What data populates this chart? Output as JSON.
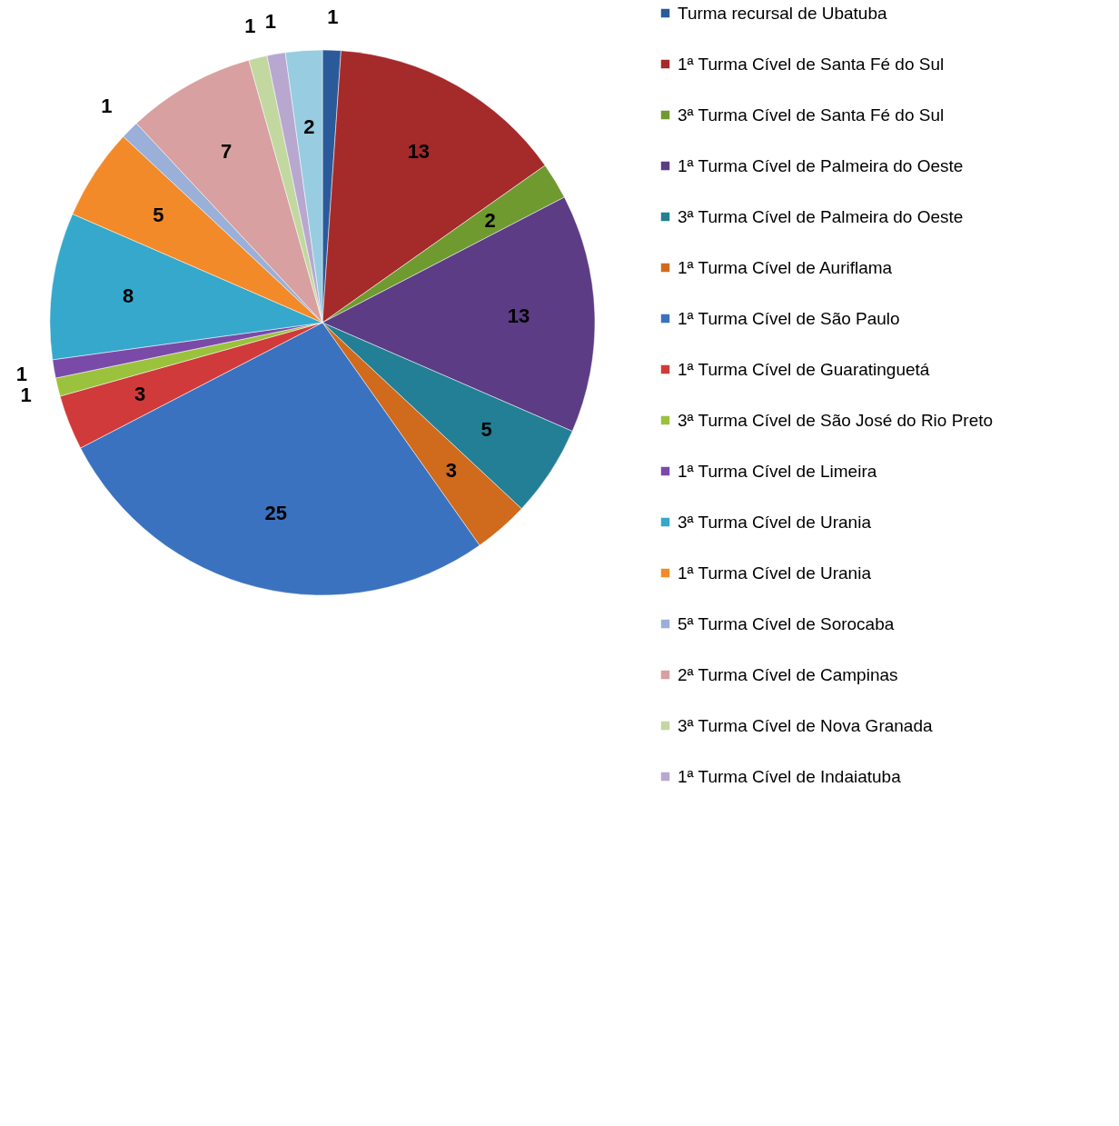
{
  "chart_data": {
    "type": "pie",
    "categories": [
      "Turma recursal de Ubatuba",
      "1ª Turma Cível de Santa Fé do Sul",
      "3ª Turma Cível de Santa Fé do Sul",
      "1ª Turma Cível de Palmeira do Oeste",
      "3ª Turma Cível de Palmeira do Oeste",
      "1ª Turma Cível de Auriflama",
      "1ª Turma Cível de São Paulo",
      "1ª Turma Cível de Guaratinguetá",
      "3ª Turma Cível de São José do Rio Preto",
      "1ª Turma Cível de Limeira",
      "3ª Turma Cível de Urania",
      "1ª Turma Cível de Urania",
      "5ª Turma Cível de Sorocaba",
      "2ª Turma Cível de Campinas",
      "3ª Turma Cível de Nova Granada",
      "1ª Turma Cível de Indaiatuba",
      null
    ],
    "values": [
      1,
      13,
      2,
      13,
      5,
      3,
      25,
      3,
      1,
      1,
      8,
      5,
      1,
      7,
      1,
      1,
      2
    ],
    "colors": [
      "#2a5a9a",
      "#a52a2a",
      "#6f9a30",
      "#5b3c85",
      "#237f95",
      "#d06a1c",
      "#3a72c0",
      "#d03a3a",
      "#9ac23c",
      "#7a4aa8",
      "#35a8cc",
      "#f28a2a",
      "#9ab0d8",
      "#d8a0a0",
      "#c2d8a0",
      "#b8a8d0",
      "#98cce0"
    ],
    "data_labels": true,
    "legend": "right"
  }
}
